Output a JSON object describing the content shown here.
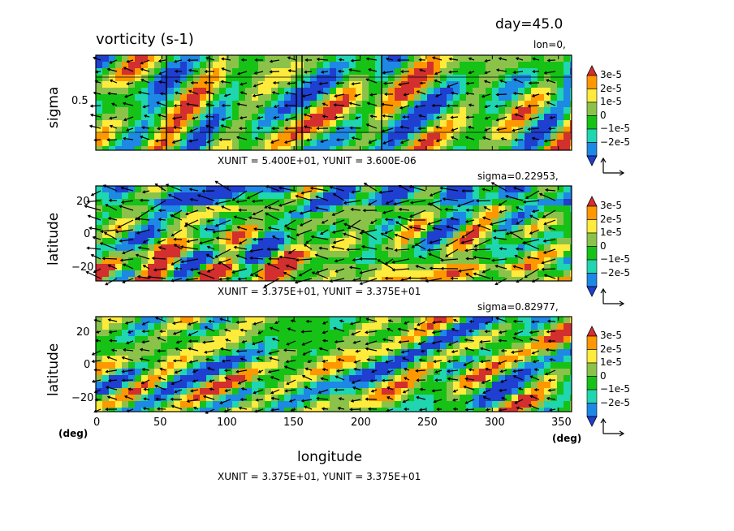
{
  "title": "vorticity (s-1)",
  "day_label": "day=45.0",
  "xlabel": "longitude",
  "deg_left": "(deg)",
  "deg_right": "(deg)",
  "colorbar": {
    "labels": [
      "3e-5",
      "2e-5",
      "1e-5",
      "0",
      "−1e-5",
      "−2e-5"
    ],
    "levels": [
      3e-05,
      2e-05,
      1e-05,
      0,
      -1e-05,
      -2e-05
    ],
    "colors": [
      "#d32f2f",
      "#ff9800",
      "#ffeb3b",
      "#8bc34a",
      "#16c216",
      "#1fd6b0",
      "#1e88e5",
      "#1e3fcf"
    ]
  },
  "panels": [
    {
      "id": "sigma-section",
      "tag": "lon=0,",
      "ylabel": "sigma",
      "unit_text": "XUNIT = 5.400E+01, YUNIT = 3.600E-06",
      "yticks": [
        "0.5"
      ],
      "xticks": []
    },
    {
      "id": "upper-level",
      "tag": "sigma=0.22953,",
      "ylabel": "latitude",
      "unit_text": "XUNIT = 3.375E+01, YUNIT = 3.375E+01",
      "yticks": [
        "20",
        "0",
        "−20"
      ],
      "xticks": []
    },
    {
      "id": "lower-level",
      "tag": "sigma=0.82977,",
      "ylabel": "latitude",
      "unit_text": "XUNIT = 3.375E+01, YUNIT = 3.375E+01",
      "yticks": [
        "20",
        "0",
        "−20"
      ],
      "xticks": [
        "0",
        "50",
        "100",
        "150",
        "200",
        "250",
        "300",
        "350"
      ]
    }
  ],
  "chart_data": {
    "type": "heatmap",
    "title": "vorticity (s-1)",
    "time": "day=45.0",
    "xlabel": "longitude",
    "x_unit": "deg",
    "xlim": [
      0,
      360
    ],
    "x_ticks": [
      0,
      50,
      100,
      150,
      200,
      250,
      300,
      350
    ],
    "panels": [
      {
        "section": "lon=0,",
        "ylabel": "sigma",
        "ylim": [
          0,
          1
        ],
        "y_ticks": [
          0.5
        ],
        "vector_units": "XUNIT = 5.400E+01, YUNIT = 3.600E-06"
      },
      {
        "section": "sigma=0.22953,",
        "ylabel": "latitude",
        "ylim": [
          -28,
          28
        ],
        "y_ticks": [
          20,
          0,
          -20
        ],
        "vector_units": "XUNIT = 3.375E+01, YUNIT = 3.375E+01"
      },
      {
        "section": "sigma=0.82977,",
        "ylabel": "latitude",
        "ylim": [
          -28,
          28
        ],
        "y_ticks": [
          20,
          0,
          -20
        ],
        "vector_units": "XUNIT = 3.375E+01, YUNIT = 3.375E+01"
      }
    ],
    "color_levels": [
      -2e-05,
      -1e-05,
      0,
      1e-05,
      2e-05,
      3e-05
    ]
  }
}
